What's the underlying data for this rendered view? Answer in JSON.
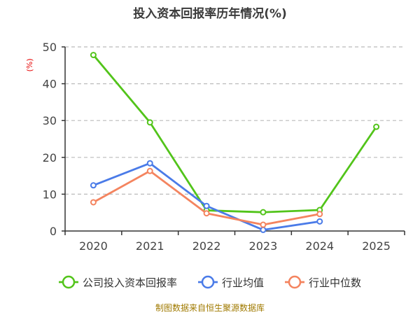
{
  "chart_data": {
    "type": "line",
    "title": "投入资本回报率历年情况(%)",
    "ylabel": "(%)",
    "xlabel": "",
    "categories": [
      "2020",
      "2021",
      "2022",
      "2023",
      "2024",
      "2025"
    ],
    "ylim": [
      0,
      50
    ],
    "yticks": [
      0,
      10,
      20,
      30,
      40,
      50
    ],
    "grid": "horizontal dashed",
    "legend_position": "bottom",
    "series": [
      {
        "name": "公司投入资本回报率",
        "color": "#52c41a",
        "values": [
          47.8,
          29.5,
          5.6,
          5.1,
          5.7,
          28.3
        ]
      },
      {
        "name": "行业均值",
        "color": "#4a7be8",
        "values": [
          12.4,
          18.4,
          6.8,
          0.3,
          2.6,
          null
        ]
      },
      {
        "name": "行业中位数",
        "color": "#f4845f",
        "values": [
          7.8,
          16.3,
          4.8,
          1.7,
          4.6,
          null
        ]
      }
    ]
  },
  "footer": {
    "source": "制图数据来自恒生聚源数据库"
  },
  "colors": {
    "title": "#3b3b3b",
    "ylabel": "#e60000",
    "footer": "#a07a00",
    "grid": "#bbbbbb",
    "axis": "#333333",
    "tick_label": "#444444"
  }
}
